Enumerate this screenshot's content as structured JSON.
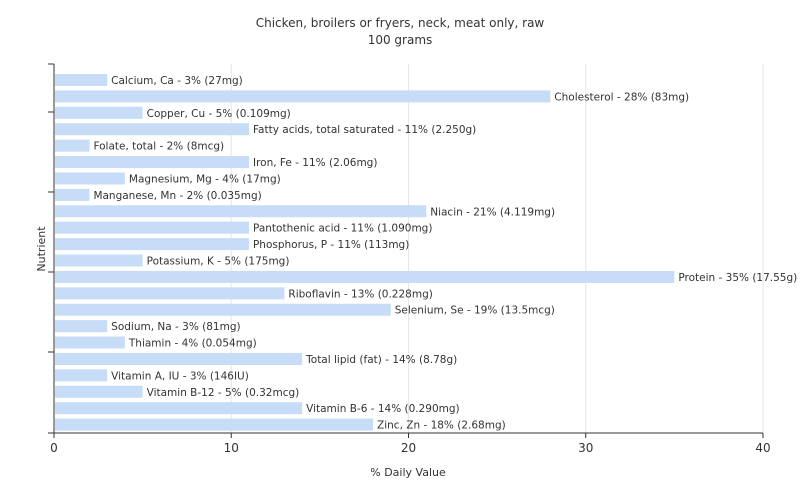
{
  "chart_data": {
    "type": "bar",
    "orientation": "horizontal",
    "title": "Chicken, broilers or fryers, neck, meat only, raw",
    "subtitle": "100 grams",
    "xlabel": "% Daily Value",
    "ylabel": "Nutrient",
    "xlim": [
      0,
      40
    ],
    "xticks": [
      0,
      10,
      20,
      30,
      40
    ],
    "grid": true,
    "bar_color": "#c6dcf7",
    "categories": [
      "Calcium, Ca",
      "Cholesterol",
      "Copper, Cu",
      "Fatty acids, total saturated",
      "Folate, total",
      "Iron, Fe",
      "Magnesium, Mg",
      "Manganese, Mn",
      "Niacin",
      "Pantothenic acid",
      "Phosphorus, P",
      "Potassium, K",
      "Protein",
      "Riboflavin",
      "Selenium, Se",
      "Sodium, Na",
      "Thiamin",
      "Total lipid (fat)",
      "Vitamin A, IU",
      "Vitamin B-12",
      "Vitamin B-6",
      "Zinc, Zn"
    ],
    "values": [
      3,
      28,
      5,
      11,
      2,
      11,
      4,
      2,
      21,
      11,
      11,
      5,
      35,
      13,
      19,
      3,
      4,
      14,
      3,
      5,
      14,
      18
    ],
    "labels": [
      "Calcium, Ca - 3% (27mg)",
      "Cholesterol - 28% (83mg)",
      "Copper, Cu - 5% (0.109mg)",
      "Fatty acids, total saturated - 11% (2.250g)",
      "Folate, total - 2% (8mcg)",
      "Iron, Fe - 11% (2.06mg)",
      "Magnesium, Mg - 4% (17mg)",
      "Manganese, Mn - 2% (0.035mg)",
      "Niacin - 21% (4.119mg)",
      "Pantothenic acid - 11% (1.090mg)",
      "Phosphorus, P - 11% (113mg)",
      "Potassium, K - 5% (175mg)",
      "Protein - 35% (17.55g)",
      "Riboflavin - 13% (0.228mg)",
      "Selenium, Se - 19% (13.5mcg)",
      "Sodium, Na - 3% (81mg)",
      "Thiamin - 4% (0.054mg)",
      "Total lipid (fat) - 14% (8.78g)",
      "Vitamin A, IU - 3% (146IU)",
      "Vitamin B-12 - 5% (0.32mcg)",
      "Vitamin B-6 - 14% (0.290mg)",
      "Zinc, Zn - 18% (2.68mg)"
    ]
  }
}
